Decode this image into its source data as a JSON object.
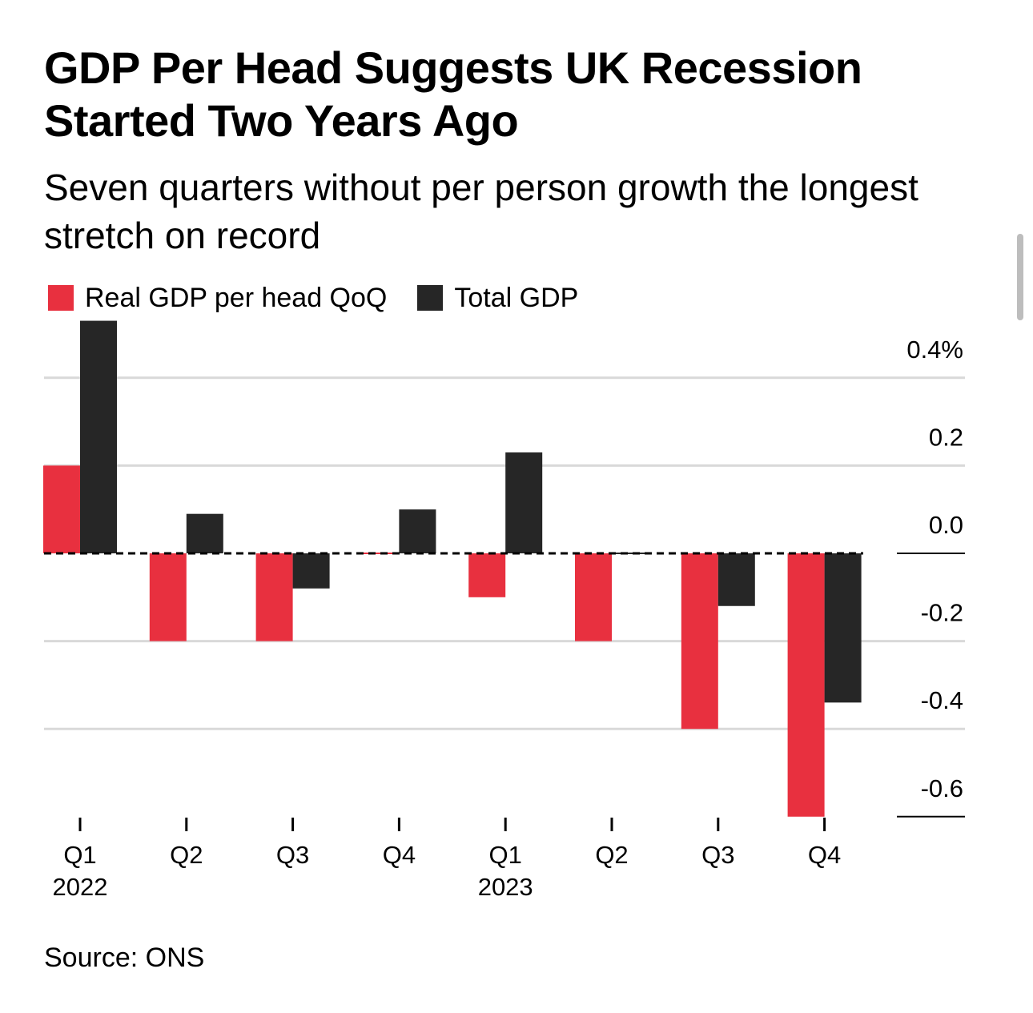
{
  "chart_data": {
    "type": "bar",
    "title": "GDP Per Head Suggests UK Recession Started Two Years Ago",
    "subtitle": "Seven quarters without per person growth the longest stretch on record",
    "categories": [
      "Q1",
      "Q2",
      "Q3",
      "Q4",
      "Q1",
      "Q2",
      "Q3",
      "Q4"
    ],
    "year_labels": [
      "2022",
      "",
      "",
      "",
      "2023",
      "",
      "",
      ""
    ],
    "series": [
      {
        "name": "Real GDP per head QoQ",
        "color": "#e8303f",
        "values": [
          0.2,
          -0.2,
          -0.2,
          0.0,
          -0.1,
          -0.2,
          -0.4,
          -0.6
        ]
      },
      {
        "name": "Total GDP",
        "color": "#262626",
        "values": [
          0.53,
          0.09,
          -0.08,
          0.1,
          0.23,
          0.0,
          -0.12,
          -0.34
        ]
      }
    ],
    "y_ticks": [
      0.4,
      0.2,
      0.0,
      -0.2,
      -0.4,
      -0.6
    ],
    "y_tick_labels": [
      "0.4%",
      "0.2",
      "0.0",
      "-0.2",
      "-0.4",
      "-0.6"
    ],
    "ylim": [
      -0.6,
      0.53
    ],
    "grid": true,
    "legend_position": "top-left",
    "xlabel": "",
    "ylabel": "",
    "source": "Source: ONS"
  },
  "colors": {
    "red": "#e8303f",
    "black": "#262626",
    "grid": "#d9d9d9",
    "text": "#000000"
  }
}
